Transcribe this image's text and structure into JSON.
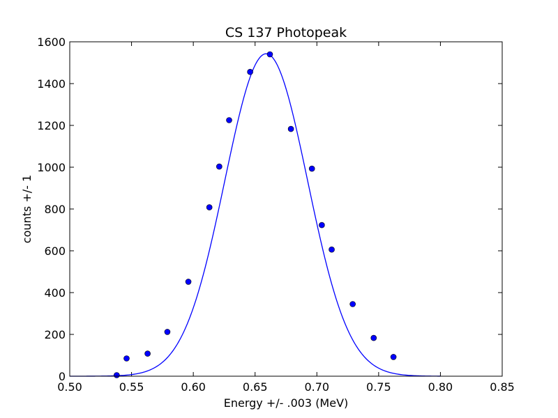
{
  "chart_data": {
    "type": "scatter",
    "title": "CS 137 Photopeak",
    "xlabel": "Energy +/- .003 (MeV)",
    "ylabel": "counts +/- 1",
    "xlim": [
      0.5,
      0.85
    ],
    "ylim": [
      0,
      1600
    ],
    "xticks": [
      "0.50",
      "0.55",
      "0.60",
      "0.65",
      "0.70",
      "0.75",
      "0.80",
      "0.85"
    ],
    "yticks": [
      "0",
      "200",
      "400",
      "600",
      "800",
      "1000",
      "1200",
      "1400",
      "1600"
    ],
    "grid": false,
    "legend": "none",
    "marker_color": "#0000ff",
    "line_color": "#0000ff",
    "points": [
      {
        "x": 0.538,
        "y": 5
      },
      {
        "x": 0.546,
        "y": 85
      },
      {
        "x": 0.563,
        "y": 108
      },
      {
        "x": 0.579,
        "y": 212
      },
      {
        "x": 0.596,
        "y": 452
      },
      {
        "x": 0.613,
        "y": 808
      },
      {
        "x": 0.621,
        "y": 1003
      },
      {
        "x": 0.629,
        "y": 1225
      },
      {
        "x": 0.646,
        "y": 1456
      },
      {
        "x": 0.662,
        "y": 1540
      },
      {
        "x": 0.679,
        "y": 1183
      },
      {
        "x": 0.696,
        "y": 993
      },
      {
        "x": 0.704,
        "y": 723
      },
      {
        "x": 0.712,
        "y": 606
      },
      {
        "x": 0.729,
        "y": 345
      },
      {
        "x": 0.746,
        "y": 183
      },
      {
        "x": 0.762,
        "y": 92
      }
    ],
    "fit_curve": {
      "type": "gaussian",
      "amplitude": 1543,
      "mean": 0.659,
      "sigma": 0.0335,
      "x_range": [
        0.5,
        0.8
      ]
    }
  }
}
